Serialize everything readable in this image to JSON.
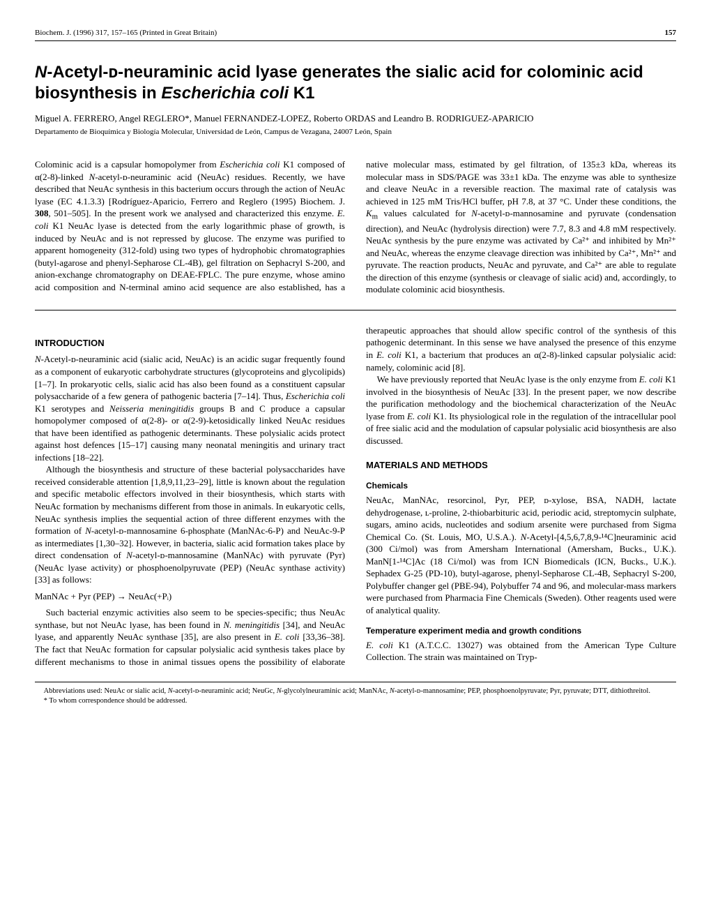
{
  "header": {
    "left": "Biochem. J. (1996) 317, 157–165 (Printed in Great Britain)",
    "page": "157"
  },
  "title_html": "<span class='em'>N</span>-Acetyl-ᴅ-neuraminic acid lyase generates the sialic acid for colominic acid biosynthesis in <span class='em'>Escherichia coli</span> K1",
  "authors": "Miguel A. FERRERO, Angel REGLERO*, Manuel FERNANDEZ-LOPEZ, Roberto ORDAS and Leandro B. RODRIGUEZ-APARICIO",
  "affiliation": "Departamento de Bioquímica y Biología Molecular, Universidad de León, Campus de Vezagana, 24007 León, Spain",
  "abstract_html": "Colominic acid is a capsular homopolymer from <i>Escherichia coli</i> K1 composed of α(2-8)-linked <i>N</i>-acetyl-ᴅ-neuraminic acid (NeuAc) residues. Recently, we have described that NeuAc synthesis in this bacterium occurs through the action of NeuAc lyase (EC 4.1.3.3) [Rodríguez-Aparicio, Ferrero and Reglero (1995) Biochem. J. <b>308</b>, 501–505]. In the present work we analysed and characterized this enzyme. <i>E. coli</i> K1 NeuAc lyase is detected from the early logarithmic phase of growth, is induced by NeuAc and is not repressed by glucose. The enzyme was purified to apparent homogeneity (312-fold) using two types of hydrophobic chromatographies (butyl-agarose and phenyl-Sepharose CL-4B), gel filtration on Sephacryl S-200, and anion-exchange chromatography on DEAE-FPLC. The pure enzyme, whose amino acid composition and N-terminal amino acid sequence are also established, has a native molecular mass, estimated by gel filtration, of 135±3 kDa, whereas its molecular mass in SDS/PAGE was 33±1 kDa. The enzyme was able to synthesize and cleave NeuAc in a reversible reaction. The maximal rate of catalysis was achieved in 125 mM Tris/HCl buffer, pH 7.8, at 37 °C. Under these conditions, the <i>K</i><sub>m</sub> values calculated for <i>N</i>-acetyl-ᴅ-mannosamine and pyruvate (condensation direction), and NeuAc (hydrolysis direction) were 7.7, 8.3 and 4.8 mM respectively. NeuAc synthesis by the pure enzyme was activated by Ca²⁺ and inhibited by Mn²⁺ and NeuAc, whereas the enzyme cleavage direction was inhibited by Ca²⁺, Mn²⁺ and pyruvate. The reaction products, NeuAc and pyruvate, and Ca²⁺ are able to regulate the direction of this enzyme (synthesis or cleavage of sialic acid) and, accordingly, to modulate colominic acid biosynthesis.",
  "sections": {
    "intro_heading": "INTRODUCTION",
    "intro_p1_html": "<i>N</i>-Acetyl-ᴅ-neuraminic acid (sialic acid, NeuAc) is an acidic sugar frequently found as a component of eukaryotic carbohydrate structures (glycoproteins and glycolipids) [1–7]. In prokaryotic cells, sialic acid has also been found as a constituent capsular polysaccharide of a few genera of pathogenic bacteria [7–14]. Thus, <i>Escherichia coli</i> K1 serotypes and <i>Neisseria meningitidis</i> groups B and C produce a capsular homopolymer composed of α(2-8)- or α(2-9)-ketosidically linked NeuAc residues that have been identified as pathogenic determinants. These polysialic acids protect against host defences [15–17] causing many neonatal meningitis and urinary tract infections [18–22].",
    "intro_p2_html": "Although the biosynthesis and structure of these bacterial polysaccharides have received considerable attention [1,8,9,11,23–29], little is known about the regulation and specific metabolic effectors involved in their biosynthesis, which starts with NeuAc formation by mechanisms different from those in animals. In eukaryotic cells, NeuAc synthesis implies the sequential action of three different enzymes with the formation of <i>N</i>-acetyl-ᴅ-mannosamine 6-phosphate (ManNAc-6-P) and NeuAc-9-P as intermediates [1,30–32]. However, in bacteria, sialic acid formation takes place by direct condensation of <i>N</i>-acetyl-ᴅ-mannosamine (ManNAc) with pyruvate (Pyr) (NeuAc lyase activity) or phosphoenolpyruvate (PEP) (NeuAc synthase activity) [33] as follows:",
    "equation": "ManNAc + Pyr (PEP) → NeuAc(+Pᵢ)",
    "intro_p3_html": "Such bacterial enzymic activities also seem to be species-specific; thus NeuAc synthase, but not NeuAc lyase, has been found in <i>N. meningitidis</i> [34], and NeuAc lyase, and apparently NeuAc synthase [35], are also present in <i>E. coli</i> [33,36–38]. The fact that NeuAc formation for capsular polysialic acid synthesis takes place by different mechanisms to those in animal tissues opens the possibility of elaborate therapeutic approaches that should allow specific control of the synthesis of this pathogenic determinant. In this sense we have analysed the presence of this enzyme in <i>E. coli</i> K1, a bacterium that produces an α(2-8)-linked capsular polysialic acid: namely, colominic acid [8].",
    "intro_p4_html": "We have previously reported that NeuAc lyase is the only enzyme from <i>E. coli</i> K1 involved in the biosynthesis of NeuAc [33]. In the present paper, we now describe the purification methodology and the biochemical characterization of the NeuAc lyase from <i>E. coli</i> K1. Its physiological role in the regulation of the intracellular pool of free sialic acid and the modulation of capsular polysialic acid biosynthesis are also discussed.",
    "mm_heading": "MATERIALS AND METHODS",
    "chem_heading": "Chemicals",
    "chem_p_html": "NeuAc, ManNAc, resorcinol, Pyr, PEP, ᴅ-xylose, BSA, NADH, lactate dehydrogenase, ʟ-proline, 2-thiobarbituric acid, periodic acid, streptomycin sulphate, sugars, amino acids, nucleotides and sodium arsenite were purchased from Sigma Chemical Co. (St. Louis, MO, U.S.A.). <i>N</i>-Acetyl-[4,5,6,7,8,9-¹⁴C]neuraminic acid (300 Ci/mol) was from Amersham International (Amersham, Bucks., U.K.). ManN[1-¹⁴C]Ac (18 Ci/mol) was from ICN Biomedicals (ICN, Bucks., U.K.). Sephadex G-25 (PD-10), butyl-agarose, phenyl-Sepharose CL-4B, Sephacryl S-200, Polybuffer changer gel (PBE-94), Polybuffer 74 and 96, and molecular-mass markers were purchased from Pharmacia Fine Chemicals (Sweden). Other reagents used were of analytical quality.",
    "temp_heading": "Temperature experiment media and growth conditions",
    "temp_p_html": "<i>E. coli</i> K1 (A.T.C.C. 13027) was obtained from the American Type Culture Collection. The strain was maintained on Tryp-"
  },
  "footer": {
    "abbrev_html": "Abbreviations used: NeuAc or sialic acid, <i>N</i>-acetyl-ᴅ-neuraminic acid; NeuGc, <i>N</i>-glycolylneuraminic acid; ManNAc, <i>N</i>-acetyl-ᴅ-mannosamine; PEP, phosphoenolpyruvate; Pyr, pyruvate; DTT, dithiothreitol.",
    "corr": "* To whom correspondence should be addressed."
  }
}
